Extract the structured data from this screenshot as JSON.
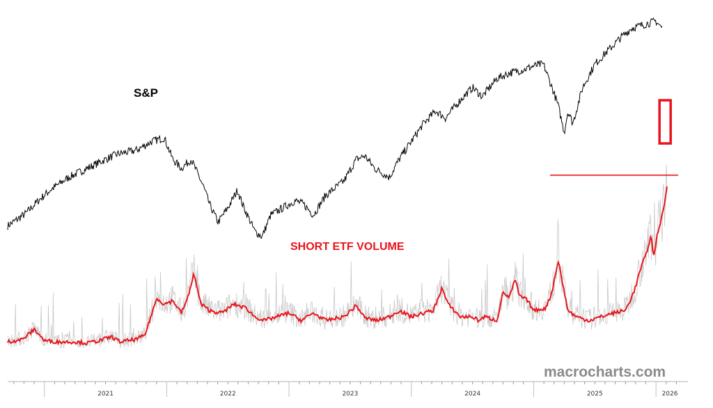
{
  "chart_data": {
    "type": "line",
    "title": "",
    "xlabel": "",
    "ylabel": "",
    "x_ticks": [
      "2021",
      "2022",
      "2023",
      "2024",
      "2025",
      "2026"
    ],
    "grid": false,
    "series": [
      {
        "name": "S&P",
        "color": "#000000",
        "relative_level": [
          [
            2020.7,
            0.08
          ],
          [
            2020.85,
            0.15
          ],
          [
            2020.95,
            0.22
          ],
          [
            2021.05,
            0.28
          ],
          [
            2021.2,
            0.35
          ],
          [
            2021.35,
            0.4
          ],
          [
            2021.5,
            0.45
          ],
          [
            2021.6,
            0.48
          ],
          [
            2021.75,
            0.5
          ],
          [
            2021.88,
            0.55
          ],
          [
            2021.98,
            0.57
          ],
          [
            2022.05,
            0.45
          ],
          [
            2022.12,
            0.4
          ],
          [
            2022.2,
            0.45
          ],
          [
            2022.3,
            0.3
          ],
          [
            2022.35,
            0.2
          ],
          [
            2022.42,
            0.1
          ],
          [
            2022.5,
            0.18
          ],
          [
            2022.58,
            0.28
          ],
          [
            2022.62,
            0.2
          ],
          [
            2022.72,
            0.05
          ],
          [
            2022.78,
            0.02
          ],
          [
            2022.85,
            0.14
          ],
          [
            2022.95,
            0.18
          ],
          [
            2023.05,
            0.22
          ],
          [
            2023.12,
            0.2
          ],
          [
            2023.2,
            0.14
          ],
          [
            2023.3,
            0.25
          ],
          [
            2023.45,
            0.33
          ],
          [
            2023.55,
            0.45
          ],
          [
            2023.62,
            0.47
          ],
          [
            2023.7,
            0.4
          ],
          [
            2023.82,
            0.35
          ],
          [
            2023.9,
            0.45
          ],
          [
            2024.0,
            0.55
          ],
          [
            2024.1,
            0.65
          ],
          [
            2024.2,
            0.72
          ],
          [
            2024.28,
            0.68
          ],
          [
            2024.4,
            0.78
          ],
          [
            2024.5,
            0.85
          ],
          [
            2024.58,
            0.8
          ],
          [
            2024.7,
            0.9
          ],
          [
            2024.8,
            0.93
          ],
          [
            2024.92,
            0.95
          ],
          [
            2025.0,
            0.97
          ],
          [
            2025.08,
            0.98
          ],
          [
            2025.15,
            0.85
          ],
          [
            2025.2,
            0.75
          ],
          [
            2025.25,
            0.6
          ],
          [
            2025.28,
            0.72
          ],
          [
            2025.32,
            0.65
          ],
          [
            2025.4,
            0.85
          ],
          [
            2025.5,
            0.98
          ],
          [
            2025.6,
            1.05
          ],
          [
            2025.7,
            1.12
          ],
          [
            2025.8,
            1.18
          ],
          [
            2025.9,
            1.2
          ],
          [
            2026.0,
            1.22
          ],
          [
            2026.05,
            1.18
          ]
        ]
      },
      {
        "name": "SHORT ETF VOLUME",
        "color": "#e8141c",
        "relative_level": [
          [
            2020.7,
            0.05
          ],
          [
            2020.82,
            0.07
          ],
          [
            2020.92,
            0.15
          ],
          [
            2021.0,
            0.06
          ],
          [
            2021.1,
            0.05
          ],
          [
            2021.25,
            0.05
          ],
          [
            2021.35,
            0.04
          ],
          [
            2021.45,
            0.06
          ],
          [
            2021.55,
            0.09
          ],
          [
            2021.62,
            0.05
          ],
          [
            2021.75,
            0.07
          ],
          [
            2021.82,
            0.1
          ],
          [
            2021.92,
            0.4
          ],
          [
            2021.98,
            0.35
          ],
          [
            2022.05,
            0.38
          ],
          [
            2022.12,
            0.28
          ],
          [
            2022.18,
            0.42
          ],
          [
            2022.22,
            0.6
          ],
          [
            2022.28,
            0.35
          ],
          [
            2022.35,
            0.3
          ],
          [
            2022.45,
            0.28
          ],
          [
            2022.55,
            0.35
          ],
          [
            2022.65,
            0.32
          ],
          [
            2022.72,
            0.25
          ],
          [
            2022.8,
            0.22
          ],
          [
            2022.9,
            0.25
          ],
          [
            2023.0,
            0.28
          ],
          [
            2023.1,
            0.22
          ],
          [
            2023.2,
            0.28
          ],
          [
            2023.3,
            0.22
          ],
          [
            2023.45,
            0.25
          ],
          [
            2023.55,
            0.34
          ],
          [
            2023.62,
            0.24
          ],
          [
            2023.72,
            0.22
          ],
          [
            2023.82,
            0.25
          ],
          [
            2023.9,
            0.3
          ],
          [
            2024.0,
            0.25
          ],
          [
            2024.1,
            0.28
          ],
          [
            2024.18,
            0.3
          ],
          [
            2024.25,
            0.48
          ],
          [
            2024.3,
            0.35
          ],
          [
            2024.4,
            0.25
          ],
          [
            2024.5,
            0.25
          ],
          [
            2024.55,
            0.22
          ],
          [
            2024.6,
            0.25
          ],
          [
            2024.7,
            0.22
          ],
          [
            2024.75,
            0.45
          ],
          [
            2024.8,
            0.4
          ],
          [
            2024.85,
            0.55
          ],
          [
            2024.88,
            0.42
          ],
          [
            2024.95,
            0.38
          ],
          [
            2025.0,
            0.3
          ],
          [
            2025.1,
            0.32
          ],
          [
            2025.15,
            0.45
          ],
          [
            2025.2,
            0.7
          ],
          [
            2025.23,
            0.55
          ],
          [
            2025.28,
            0.3
          ],
          [
            2025.35,
            0.25
          ],
          [
            2025.45,
            0.22
          ],
          [
            2025.55,
            0.25
          ],
          [
            2025.65,
            0.28
          ],
          [
            2025.75,
            0.3
          ],
          [
            2025.82,
            0.45
          ],
          [
            2025.88,
            0.65
          ],
          [
            2025.92,
            0.75
          ],
          [
            2025.96,
            0.9
          ],
          [
            2025.98,
            0.72
          ],
          [
            2026.0,
            0.85
          ],
          [
            2026.02,
            0.95
          ],
          [
            2026.05,
            1.05
          ],
          [
            2026.07,
            1.15
          ],
          [
            2026.09,
            1.3
          ]
        ]
      }
    ],
    "reference_line": {
      "series": "SHORT ETF VOLUME",
      "relative_level": 1.38
    },
    "highlight_box": {
      "series": "SHORT ETF VOLUME",
      "x_range": [
        2026.04,
        2026.08
      ]
    }
  },
  "labels": {
    "sp": "S&P",
    "short_volume": "SHORT ETF VOLUME",
    "watermark": "macrocharts.com"
  },
  "colors": {
    "sp_line": "#000000",
    "ma_line": "#e8141c",
    "raw_volume": "#c8c8c8",
    "annotation": "#e8141c",
    "watermark": "#8a8a8a"
  }
}
